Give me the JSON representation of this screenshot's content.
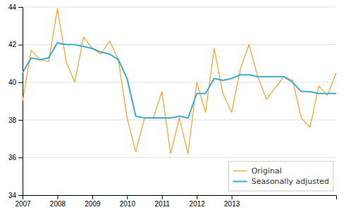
{
  "chart_data": {
    "type": "line",
    "x": [
      2007,
      2007.25,
      2007.5,
      2007.75,
      2008,
      2008.25,
      2008.5,
      2008.75,
      2009,
      2009.25,
      2009.5,
      2009.75,
      2010,
      2010.25,
      2010.5,
      2010.75,
      2011,
      2011.25,
      2011.5,
      2011.75,
      2012,
      2012.25,
      2012.5,
      2012.75,
      2013,
      2013.25,
      2013.5,
      2013.75,
      2014,
      2014.25,
      2014.5,
      2014.75,
      2015,
      2015.25,
      2015.5,
      2015.75,
      2016
    ],
    "series": [
      {
        "name": "Original",
        "color": "#f5a028",
        "values": [
          39.0,
          41.7,
          41.2,
          41.1,
          43.9,
          41.1,
          40.0,
          42.4,
          41.8,
          41.5,
          42.2,
          41.2,
          38.1,
          36.3,
          38.1,
          38.1,
          39.5,
          36.2,
          38.1,
          36.2,
          40.0,
          38.4,
          41.8,
          39.4,
          38.4,
          40.7,
          42.0,
          40.3,
          39.1,
          39.7,
          40.3,
          40.1,
          38.1,
          37.6,
          39.8,
          39.3,
          40.5
        ]
      },
      {
        "name": "Seasonally adjusted",
        "color": "#3aabcf",
        "values": [
          40.5,
          41.3,
          41.2,
          41.3,
          42.1,
          42.0,
          42.0,
          41.9,
          41.8,
          41.6,
          41.5,
          41.2,
          40.2,
          38.2,
          38.1,
          38.1,
          38.1,
          38.1,
          38.2,
          38.1,
          39.4,
          39.4,
          40.2,
          40.1,
          40.2,
          40.4,
          40.4,
          40.3,
          40.3,
          40.3,
          40.3,
          40.0,
          39.5,
          39.5,
          39.4,
          39.4,
          39.4
        ]
      }
    ],
    "xlim": [
      2007,
      2016
    ],
    "xticks": [
      2007,
      2008,
      2009,
      2010,
      2011,
      2012,
      2013
    ],
    "ylim": [
      34,
      44
    ],
    "yticks": [
      34,
      36,
      38,
      40,
      42,
      44
    ],
    "grid": "y",
    "legend": "lower right"
  }
}
